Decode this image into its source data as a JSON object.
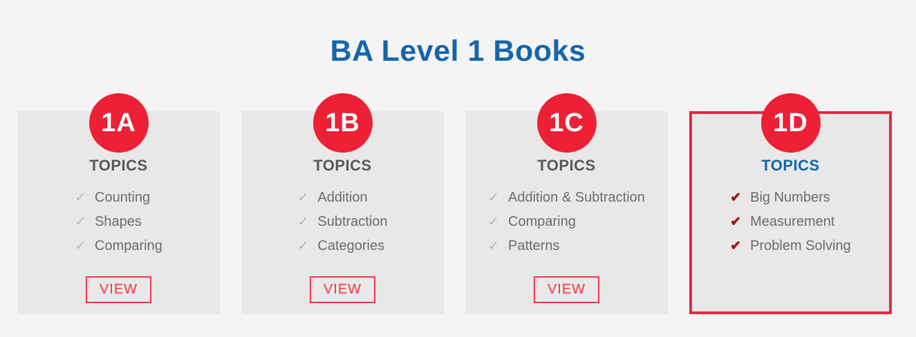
{
  "page": {
    "title": "BA Level 1 Books"
  },
  "colors": {
    "title_blue": "#1565ad",
    "badge_red": "#ed2035",
    "view_red": "#f0334a",
    "highlight_border_red": "#e02b40",
    "check_gray": "#b5b5b5",
    "check_dark_red": "#a50f1e",
    "card_bg": "#e8e8e8",
    "page_bg": "#f4f4f4",
    "heading_gray": "#57585a",
    "topics_blue": "#1464ac"
  },
  "icons": {
    "check": "✓",
    "check_bold": "✔"
  },
  "cards": [
    {
      "badge": "1A",
      "topics_label": "TOPICS",
      "items": [
        "Counting",
        "Shapes",
        "Comparing"
      ],
      "view_label": "VIEW",
      "highlighted": false
    },
    {
      "badge": "1B",
      "topics_label": "TOPICS",
      "items": [
        "Addition",
        "Subtraction",
        "Categories"
      ],
      "view_label": "VIEW",
      "highlighted": false
    },
    {
      "badge": "1C",
      "topics_label": "TOPICS",
      "items": [
        "Addition & Subtraction",
        "Comparing",
        "Patterns"
      ],
      "view_label": "VIEW",
      "highlighted": false
    },
    {
      "badge": "1D",
      "topics_label": "TOPICS",
      "items": [
        "Big Numbers",
        "Measurement",
        "Problem Solving"
      ],
      "view_label": null,
      "highlighted": true
    }
  ]
}
